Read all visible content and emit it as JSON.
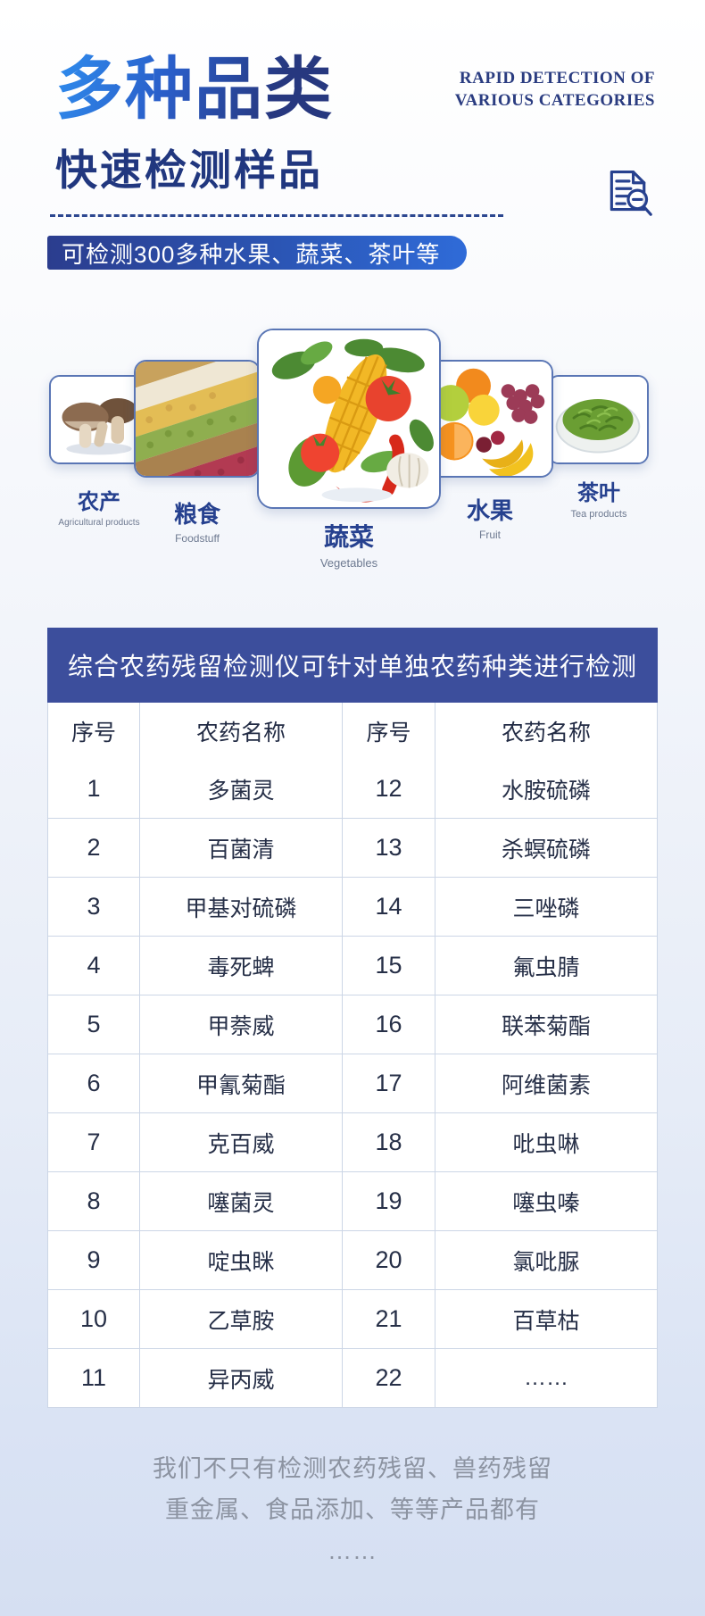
{
  "header": {
    "title": "多种品类",
    "subtitle": "快速检测样品",
    "tagline_line1": "RAPID DETECTION OF",
    "tagline_line2": "VARIOUS CATEGORIES",
    "banner": "可检测300多种水果、蔬菜、茶叶等"
  },
  "colors": {
    "title_gradient_start": "#2f8dee",
    "title_navy": "#21377f",
    "banner_gradient_start": "#2b3d8e",
    "banner_gradient_end": "#2f6bd8",
    "table_header_bg": "#3c4e9c",
    "table_border": "#ccd6e6",
    "footer_gray": "#8c93a1"
  },
  "categories": [
    {
      "zh": "农产",
      "en": "Agricultural products",
      "image": "mushrooms"
    },
    {
      "zh": "粮食",
      "en": "Foodstuff",
      "image": "grains"
    },
    {
      "zh": "蔬菜",
      "en": "Vegetables",
      "image": "vegetables"
    },
    {
      "zh": "水果",
      "en": "Fruit",
      "image": "fruits"
    },
    {
      "zh": "茶叶",
      "en": "Tea products",
      "image": "tea-leaves"
    }
  ],
  "table": {
    "title": "综合农药残留检测仪可针对单独农药种类进行检测",
    "columns": [
      "序号",
      "农药名称",
      "序号",
      "农药名称"
    ],
    "rows": [
      [
        "1",
        "多菌灵",
        "12",
        "水胺硫磷"
      ],
      [
        "2",
        "百菌清",
        "13",
        "杀螟硫磷"
      ],
      [
        "3",
        "甲基对硫磷",
        "14",
        "三唑磷"
      ],
      [
        "4",
        "毒死蜱",
        "15",
        "氟虫腈"
      ],
      [
        "5",
        "甲萘威",
        "16",
        "联苯菊酯"
      ],
      [
        "6",
        "甲氰菊酯",
        "17",
        "阿维菌素"
      ],
      [
        "7",
        "克百威",
        "18",
        "吡虫啉"
      ],
      [
        "8",
        "噻菌灵",
        "19",
        "噻虫嗪"
      ],
      [
        "9",
        "啶虫眯",
        "20",
        "氯吡脲"
      ],
      [
        "10",
        "乙草胺",
        "21",
        "百草枯"
      ],
      [
        "11",
        "异丙威",
        "22",
        "……"
      ]
    ]
  },
  "footer": {
    "line1": "我们不只有检测农药残留、兽药残留",
    "line2": "重金属、食品添加、等等产品都有",
    "line3": "……"
  }
}
